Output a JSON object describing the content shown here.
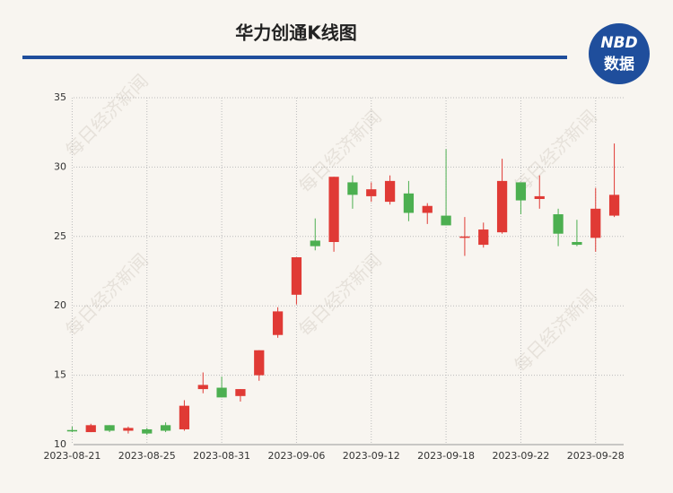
{
  "chart_data": {
    "type": "candlestick",
    "title": "华力创通K线图",
    "categories": [
      "2023-08-21",
      null,
      null,
      null,
      "2023-08-25",
      null,
      null,
      null,
      "2023-08-31",
      null,
      null,
      null,
      "2023-09-06",
      null,
      null,
      null,
      "2023-09-12",
      null,
      null,
      null,
      "2023-09-18",
      null,
      null,
      null,
      "2023-09-22",
      null,
      null,
      null,
      "2023-09-28",
      null
    ],
    "open": [
      11.05,
      10.9,
      11.4,
      11.0,
      11.1,
      11.4,
      11.1,
      14.0,
      14.1,
      13.5,
      15.0,
      17.9,
      20.8,
      24.7,
      24.6,
      28.9,
      27.9,
      27.5,
      28.1,
      26.7,
      26.5,
      24.9,
      24.4,
      25.3,
      28.9,
      27.7,
      26.6,
      24.6,
      24.9,
      26.5
    ],
    "high": [
      11.3,
      11.5,
      11.4,
      11.3,
      11.2,
      11.6,
      13.2,
      15.2,
      14.9,
      14.0,
      16.8,
      19.9,
      23.5,
      26.3,
      29.3,
      29.4,
      28.9,
      29.4,
      29.0,
      27.4,
      31.3,
      26.4,
      26.0,
      30.6,
      28.9,
      29.4,
      27.0,
      26.2,
      28.5,
      31.7
    ],
    "low": [
      10.9,
      10.9,
      10.9,
      10.8,
      10.7,
      10.9,
      11.0,
      13.7,
      13.4,
      13.1,
      14.6,
      17.7,
      20.1,
      24.0,
      23.9,
      27.0,
      27.5,
      27.3,
      26.1,
      25.9,
      25.8,
      23.6,
      24.2,
      25.2,
      26.6,
      27.0,
      24.3,
      24.3,
      23.9,
      26.4
    ],
    "close": [
      10.95,
      11.4,
      11.0,
      11.2,
      10.8,
      11.0,
      12.8,
      14.3,
      13.4,
      14.0,
      16.8,
      19.6,
      23.5,
      24.3,
      29.3,
      28.0,
      28.4,
      29.0,
      26.7,
      27.2,
      25.8,
      25.0,
      25.5,
      29.0,
      27.6,
      27.9,
      25.2,
      24.4,
      27.0,
      28.0
    ],
    "up_color": "#e03a35",
    "down_color": "#4caf50",
    "ylim": [
      10,
      35
    ],
    "yticks": [
      10,
      15,
      20,
      25,
      30,
      35
    ],
    "grid": true
  },
  "watermark": "每日经济新闻",
  "logo": {
    "top": "NBD",
    "bottom": "数据"
  }
}
